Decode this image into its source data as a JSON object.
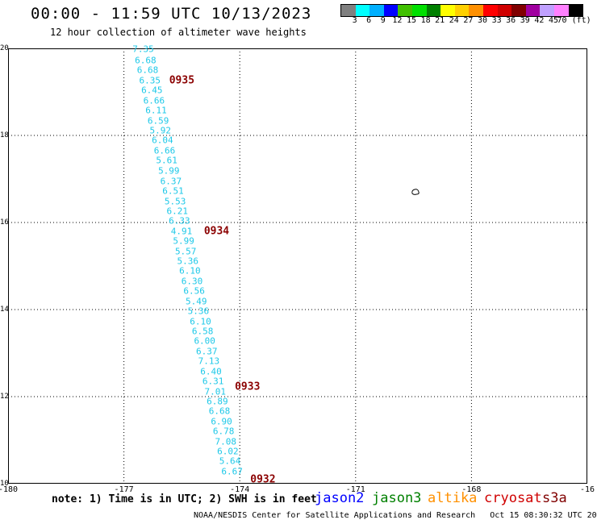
{
  "header": {
    "title": "00:00 - 11:59 UTC 10/13/2023",
    "subtitle": "12 hour collection of altimeter wave heights"
  },
  "colorbar": {
    "colors": [
      "#808080",
      "#00ffff",
      "#00b0ff",
      "#0000ff",
      "#40c000",
      "#00e000",
      "#008000",
      "#ffff00",
      "#ffd000",
      "#ff9000",
      "#ff0000",
      "#d00000",
      "#800000",
      "#a000a0",
      "#c0a0ff",
      "#ff80ff",
      "#000000"
    ],
    "labels": [
      "3",
      "6",
      "9",
      "12",
      "15",
      "18",
      "21",
      "24",
      "27",
      "30",
      "33",
      "36",
      "39",
      "42",
      "45",
      "70 (ft)"
    ]
  },
  "map": {
    "lon_range": [
      -180,
      -165
    ],
    "lat_range": [
      10,
      20
    ],
    "x_ticks": [
      "-180",
      "-177",
      "-174",
      "-171",
      "-168",
      "-16"
    ],
    "y_ticks": [
      "20",
      "18",
      "16",
      "14",
      "12",
      "10"
    ]
  },
  "wave_heights": [
    {
      "v": "7.35",
      "lat": 19.98
    },
    {
      "v": "6.68",
      "lat": 19.73
    },
    {
      "v": "6.68",
      "lat": 19.5
    },
    {
      "v": "6.35",
      "lat": 19.26
    },
    {
      "v": "6.45",
      "lat": 19.03
    },
    {
      "v": "6.66",
      "lat": 18.8
    },
    {
      "v": "6.11",
      "lat": 18.57
    },
    {
      "v": "6.59",
      "lat": 18.34
    },
    {
      "v": "5.92",
      "lat": 18.11
    },
    {
      "v": "6.04",
      "lat": 17.88
    },
    {
      "v": "6.66",
      "lat": 17.65
    },
    {
      "v": "5.61",
      "lat": 17.42
    },
    {
      "v": "5.99",
      "lat": 17.18
    },
    {
      "v": "6.37",
      "lat": 16.95
    },
    {
      "v": "6.51",
      "lat": 16.72
    },
    {
      "v": "5.53",
      "lat": 16.49
    },
    {
      "v": "6.21",
      "lat": 16.26
    },
    {
      "v": "6.33",
      "lat": 16.03
    },
    {
      "v": "4.91",
      "lat": 15.8
    },
    {
      "v": "5.99",
      "lat": 15.57
    },
    {
      "v": "5.57",
      "lat": 15.34
    },
    {
      "v": "5.36",
      "lat": 15.11
    },
    {
      "v": "6.10",
      "lat": 14.88
    },
    {
      "v": "6.30",
      "lat": 14.65
    },
    {
      "v": "6.56",
      "lat": 14.42
    },
    {
      "v": "5.49",
      "lat": 14.19
    },
    {
      "v": "5.36",
      "lat": 13.96
    },
    {
      "v": "6.10",
      "lat": 13.73
    },
    {
      "v": "6.58",
      "lat": 13.5
    },
    {
      "v": "6.00",
      "lat": 13.27
    },
    {
      "v": "6.37",
      "lat": 13.04
    },
    {
      "v": "7.13",
      "lat": 12.81
    },
    {
      "v": "6.40",
      "lat": 12.58
    },
    {
      "v": "6.31",
      "lat": 12.35
    },
    {
      "v": "7.01",
      "lat": 12.12
    },
    {
      "v": "6.89",
      "lat": 11.89
    },
    {
      "v": "6.68",
      "lat": 11.66
    },
    {
      "v": "6.90",
      "lat": 11.43
    },
    {
      "v": "6.78",
      "lat": 11.2
    },
    {
      "v": "7.08",
      "lat": 10.97
    },
    {
      "v": "6.02",
      "lat": 10.74
    },
    {
      "v": "5.64",
      "lat": 10.51
    },
    {
      "v": "6.67",
      "lat": 10.28
    }
  ],
  "track_start_lon": -176.5,
  "track_end_lon": -174.2,
  "time_labels": [
    {
      "label": "0935",
      "lon": -175.5,
      "lat": 19.26
    },
    {
      "label": "0934",
      "lon": -174.6,
      "lat": 15.8
    },
    {
      "label": "0933",
      "lon": -173.8,
      "lat": 12.23
    },
    {
      "label": "0932",
      "lon": -173.4,
      "lat": 10.05
    }
  ],
  "note": "note: 1) Time is in UTC; 2) SWH is in feet",
  "satellites": [
    {
      "name": "jason2",
      "color": "#0000ff"
    },
    {
      "name": "jason3",
      "color": "#008000"
    },
    {
      "name": "altika",
      "color": "#ff9000"
    },
    {
      "name": "cryosat",
      "color": "#d00000"
    },
    {
      "name": "s3a",
      "color": "#800000"
    }
  ],
  "footer": "NOAA/NESDIS Center for Satellite Applications and Research   Oct 15 08:30:32 UTC 2023"
}
